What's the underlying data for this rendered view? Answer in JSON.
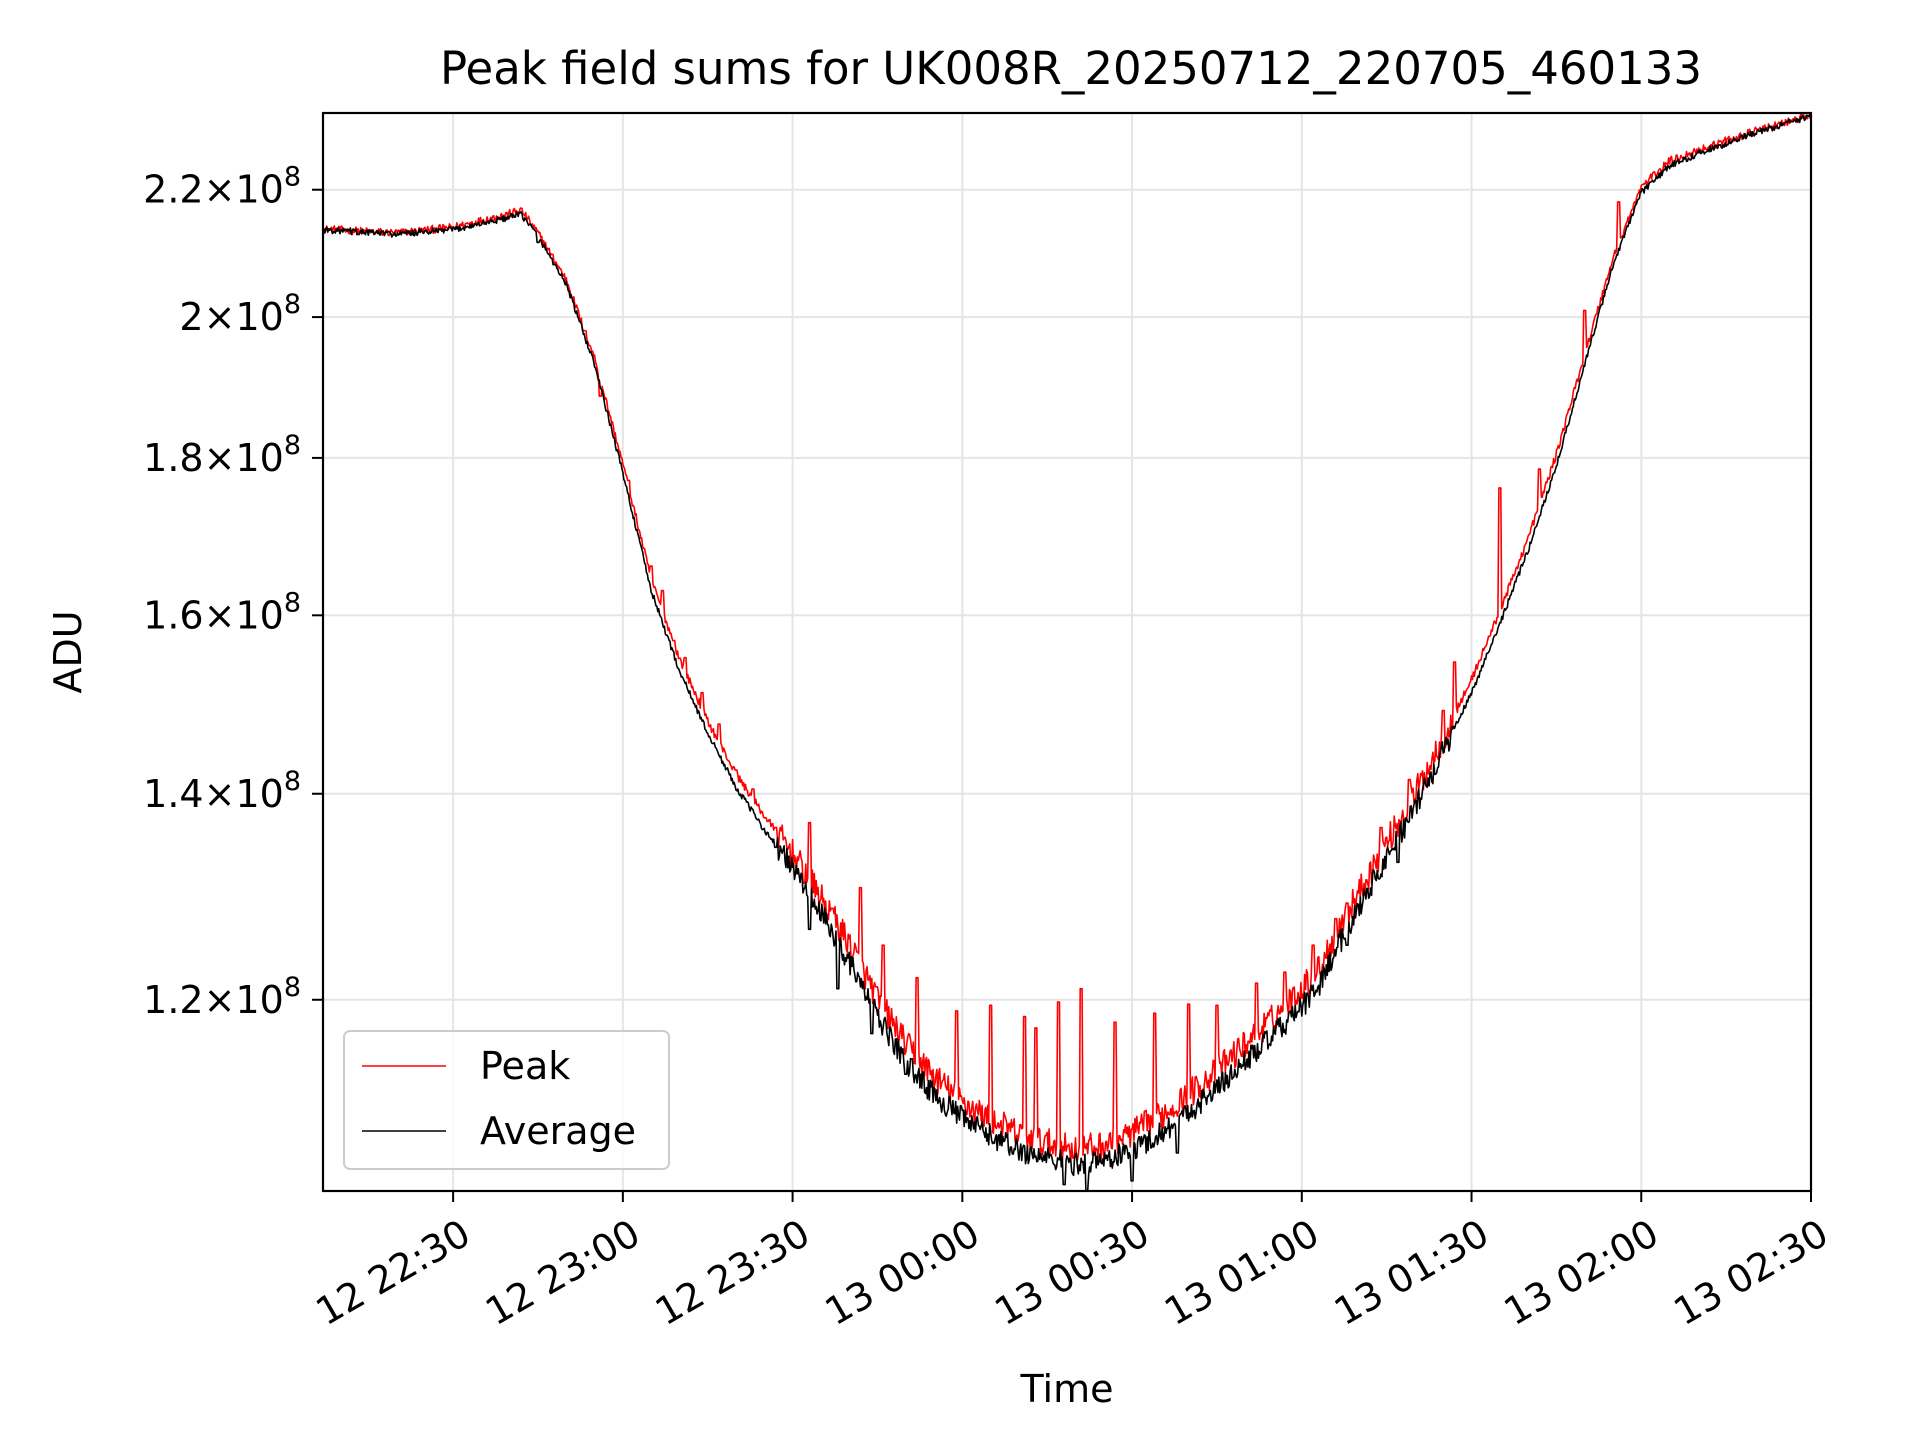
{
  "chart_data": {
    "type": "line",
    "title": "Peak field sums for UK008R_20250712_220705_460133",
    "xlabel": "Time",
    "ylabel": "ADU",
    "yscale": "log",
    "grid": true,
    "legend_position": "lower-left",
    "x_range": [
      "2025-07-12 22:07:00",
      "2025-07-13 02:30:00"
    ],
    "ylim": [
      104000000,
      233000000
    ],
    "x_ticks": [
      {
        "label": "12 22:30",
        "time": "2025-07-12 22:30:00"
      },
      {
        "label": "12 23:00",
        "time": "2025-07-12 23:00:00"
      },
      {
        "label": "12 23:30",
        "time": "2025-07-12 23:30:00"
      },
      {
        "label": "13 00:00",
        "time": "2025-07-13 00:00:00"
      },
      {
        "label": "13 00:30",
        "time": "2025-07-13 00:30:00"
      },
      {
        "label": "13 01:00",
        "time": "2025-07-13 01:00:00"
      },
      {
        "label": "13 01:30",
        "time": "2025-07-13 01:30:00"
      },
      {
        "label": "13 02:00",
        "time": "2025-07-13 02:00:00"
      },
      {
        "label": "13 02:30",
        "time": "2025-07-13 02:30:00"
      }
    ],
    "y_ticks": [
      {
        "mant": "1.2",
        "exp": "8",
        "value": 120000000
      },
      {
        "mant": "1.4",
        "exp": "8",
        "value": 140000000
      },
      {
        "mant": "1.6",
        "exp": "8",
        "value": 160000000
      },
      {
        "mant": "1.8",
        "exp": "8",
        "value": 180000000
      },
      {
        "mant": "2",
        "exp": "8",
        "value": 200000000
      },
      {
        "mant": "2.2",
        "exp": "8",
        "value": 220000000
      }
    ],
    "series": [
      {
        "name": "Average",
        "color": "#000000",
        "x": [
          "22:07",
          "22:20",
          "22:30",
          "22:40",
          "22:42",
          "22:45",
          "22:50",
          "22:55",
          "23:00",
          "23:05",
          "23:10",
          "23:15",
          "23:20",
          "23:25",
          "23:30",
          "23:35",
          "23:40",
          "23:45",
          "23:50",
          "23:55",
          "00:00",
          "00:05",
          "00:10",
          "00:15",
          "00:20",
          "00:25",
          "00:30",
          "00:35",
          "00:40",
          "00:45",
          "00:50",
          "00:55",
          "01:00",
          "01:03",
          "01:05",
          "01:10",
          "01:15",
          "01:20",
          "01:25",
          "01:30",
          "01:35",
          "01:40",
          "01:45",
          "01:50",
          "01:55",
          "02:00",
          "02:05",
          "02:10",
          "02:20",
          "02:30"
        ],
        "y": [
          213500000,
          212800000,
          213500000,
          215500000,
          216000000,
          212500000,
          205000000,
          193000000,
          178000000,
          163000000,
          153500000,
          146500000,
          140700000,
          136300000,
          132500000,
          128000000,
          123500000,
          118500000,
          114500000,
          111800000,
          109800000,
          108400000,
          107200000,
          106600000,
          106100000,
          106400000,
          107200000,
          108600000,
          110300000,
          112300000,
          114600000,
          116900000,
          119300000,
          121200000,
          123500000,
          128600000,
          133500000,
          138500000,
          144500000,
          151000000,
          159000000,
          168000000,
          179000000,
          193000000,
          208000000,
          219500000,
          224000000,
          226000000,
          229500000,
          232500000
        ]
      },
      {
        "name": "Peak",
        "color": "#ff0000",
        "x": [
          "22:07",
          "22:20",
          "22:30",
          "22:40",
          "22:42",
          "22:45",
          "22:50",
          "22:55",
          "23:00",
          "23:05",
          "23:10",
          "23:15",
          "23:20",
          "23:25",
          "23:30",
          "23:35",
          "23:40",
          "23:45",
          "23:50",
          "23:55",
          "00:00",
          "00:05",
          "00:10",
          "00:15",
          "00:20",
          "00:25",
          "00:30",
          "00:35",
          "00:40",
          "00:45",
          "00:50",
          "00:55",
          "01:00",
          "01:03",
          "01:05",
          "01:10",
          "01:15",
          "01:20",
          "01:25",
          "01:30",
          "01:35",
          "01:40",
          "01:45",
          "01:50",
          "01:55",
          "02:00",
          "02:05",
          "02:10",
          "02:20",
          "02:30"
        ],
        "y": [
          213600000,
          213000000,
          213900000,
          216100000,
          216700000,
          213000000,
          205700000,
          194000000,
          179200000,
          164400000,
          154900000,
          147800000,
          142100000,
          137700000,
          133900000,
          129500000,
          125200000,
          120100000,
          116100000,
          113300000,
          111200000,
          109700000,
          108500000,
          107800000,
          107300000,
          107600000,
          108600000,
          110000000,
          111800000,
          113800000,
          116100000,
          118400000,
          121000000,
          122800000,
          125000000,
          130000000,
          135000000,
          140000000,
          146000000,
          152500000,
          160500000,
          169500000,
          180500000,
          194500000,
          209000000,
          220500000,
          224800000,
          226600000,
          229800000,
          232600000
        ]
      }
    ],
    "peak_spikes": [
      {
        "time": "22:53",
        "value": 198000000
      },
      {
        "time": "22:56",
        "value": 188500000
      },
      {
        "time": "23:01",
        "value": 177000000
      },
      {
        "time": "23:05",
        "value": 166000000
      },
      {
        "time": "23:07",
        "value": 163000000
      },
      {
        "time": "23:09",
        "value": 157000000
      },
      {
        "time": "23:11",
        "value": 155000000
      },
      {
        "time": "23:14",
        "value": 151000000
      },
      {
        "time": "23:17",
        "value": 147500000
      },
      {
        "time": "23:20",
        "value": 142500000
      },
      {
        "time": "23:23",
        "value": 140500000
      },
      {
        "time": "23:27",
        "value": 136500000
      },
      {
        "time": "23:33",
        "value": 137000000
      },
      {
        "time": "23:37",
        "value": 128500000
      },
      {
        "time": "23:42",
        "value": 130500000
      },
      {
        "time": "23:46",
        "value": 125000000
      },
      {
        "time": "23:52",
        "value": 122000000
      },
      {
        "time": "23:59",
        "value": 119000000
      },
      {
        "time": "00:05",
        "value": 119500000
      },
      {
        "time": "00:11",
        "value": 118500000
      },
      {
        "time": "00:13",
        "value": 117500000
      },
      {
        "time": "00:17",
        "value": 119800000
      },
      {
        "time": "00:21",
        "value": 121000000
      },
      {
        "time": "00:27",
        "value": 118000000
      },
      {
        "time": "00:34",
        "value": 118800000
      },
      {
        "time": "00:40",
        "value": 119600000
      },
      {
        "time": "00:45",
        "value": 119500000
      },
      {
        "time": "00:52",
        "value": 121500000
      },
      {
        "time": "00:57",
        "value": 122500000
      },
      {
        "time": "01:02",
        "value": 125000000
      },
      {
        "time": "01:06",
        "value": 127500000
      },
      {
        "time": "01:08",
        "value": 129000000
      },
      {
        "time": "01:14",
        "value": 136500000
      },
      {
        "time": "01:19",
        "value": 141500000
      },
      {
        "time": "01:25",
        "value": 149000000
      },
      {
        "time": "01:27",
        "value": 154500000
      },
      {
        "time": "01:35",
        "value": 176000000
      },
      {
        "time": "01:42",
        "value": 178500000
      },
      {
        "time": "01:50",
        "value": 201000000
      },
      {
        "time": "01:56",
        "value": 218000000
      }
    ],
    "average_dips": [
      {
        "time": "22:45",
        "value": 211500000
      },
      {
        "time": "23:27",
        "value": 134500000
      },
      {
        "time": "23:33",
        "value": 126500000
      },
      {
        "time": "23:38",
        "value": 121000000
      },
      {
        "time": "23:44",
        "value": 117000000
      },
      {
        "time": "23:50",
        "value": 113500000
      },
      {
        "time": "00:18",
        "value": 104500000
      },
      {
        "time": "00:22",
        "value": 104000000
      },
      {
        "time": "00:30",
        "value": 104800000
      },
      {
        "time": "00:38",
        "value": 107000000
      },
      {
        "time": "01:08",
        "value": 125000000
      },
      {
        "time": "01:17",
        "value": 133000000
      }
    ]
  }
}
